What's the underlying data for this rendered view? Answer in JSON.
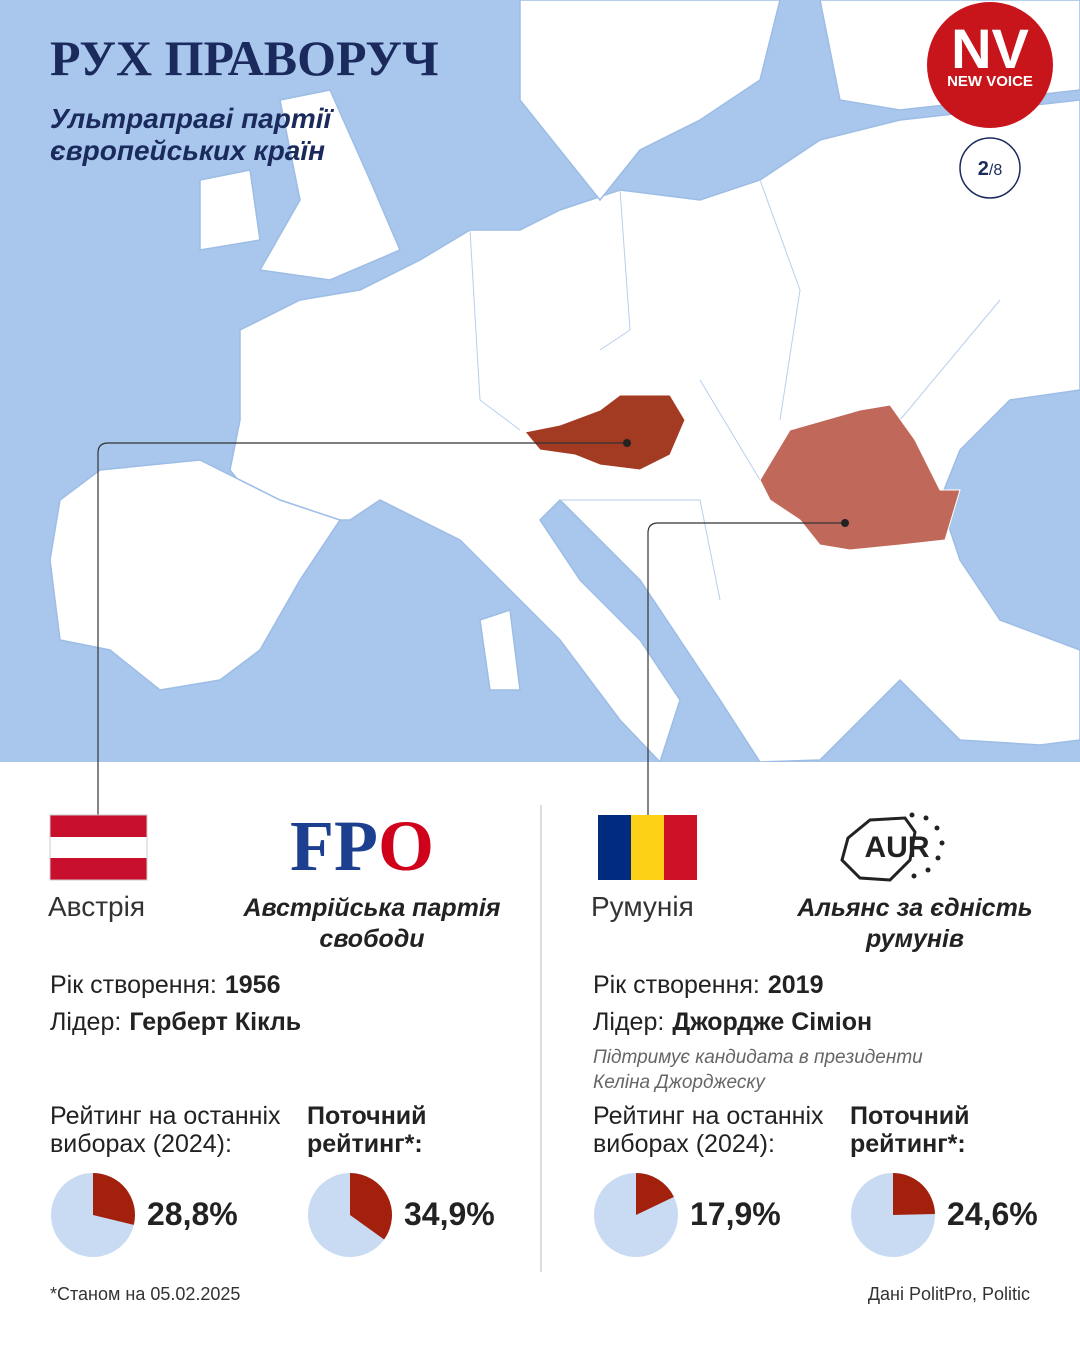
{
  "header": {
    "title": "РУХ ПРАВОРУЧ",
    "subtitle": [
      "Ультраправі партії",
      "європейських країн"
    ],
    "logo": {
      "main": "NV",
      "sub": "NEW VOICE"
    },
    "page_indicator": {
      "current": "2",
      "total": "/8"
    }
  },
  "panels": [
    {
      "country": "Австрія",
      "party_logo": {
        "main": "FP",
        "accent": "O"
      },
      "party_name": [
        "Австрійська партія",
        "свободи"
      ],
      "founded_label": "Рік створення:",
      "founded": "1956",
      "leader_label": "Лідер:",
      "leader": "Герберт Кікль",
      "note": [],
      "election": {
        "label": [
          "Рейтинг на останніх",
          "виборах (2024):"
        ],
        "value": 28.8,
        "value_label": "28,8%"
      },
      "current": {
        "label": [
          "Поточний",
          "рейтинг*:"
        ],
        "value": 34.9,
        "value_label": "34,9%"
      }
    },
    {
      "country": "Румунія",
      "party_logo": {
        "main": "AUR",
        "accent": ""
      },
      "party_name": [
        "Альянс за єдність",
        "румунів"
      ],
      "founded_label": "Рік створення:",
      "founded": "2019",
      "leader_label": "Лідер:",
      "leader": "Джордже Сіміон",
      "note": [
        "Підтримує кандидата в президенти",
        "Келіна Джорджеску"
      ],
      "election": {
        "label": [
          "Рейтинг на останніх",
          "виборах (2024):"
        ],
        "value": 17.9,
        "value_label": "17,9%"
      },
      "current": {
        "label": [
          "Поточний",
          "рейтинг*:"
        ],
        "value": 24.6,
        "value_label": "24,6%"
      }
    }
  ],
  "footnote": "*Станом на 05.02.2025",
  "source": "Дані PolitPro, Politic"
}
